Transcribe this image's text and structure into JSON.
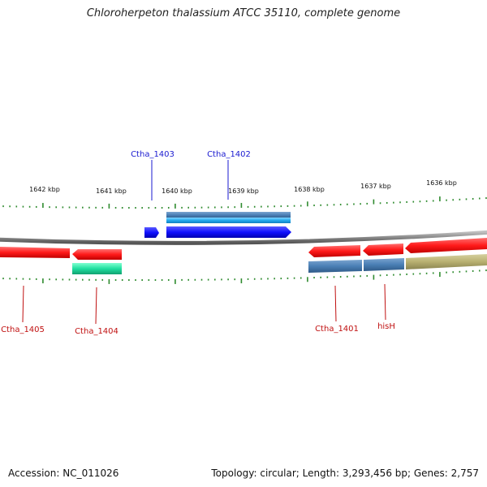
{
  "title": "Chloroherpeton thalassium ATCC 35110, complete genome",
  "footer": {
    "accession": "Accession: NC_011026",
    "summary": "Topology: circular; Length: 3,293,456 bp; Genes: 2,757"
  },
  "ruler": {
    "ticks": [
      "1642 kbp",
      "1641 kbp",
      "1640 kbp",
      "1639 kbp",
      "1638 kbp",
      "1637 kbp",
      "1636 kbp"
    ],
    "tick_color": "#2e8b2e"
  },
  "backbone_color": "#888888",
  "genes": [
    {
      "label": "Ctha_1403",
      "strand": "forward",
      "color": "#1a1aff",
      "label_color": "#1a1ad0"
    },
    {
      "label": "Ctha_1402",
      "strand": "forward",
      "color": "#1a1aff",
      "label_color": "#1a1ad0"
    },
    {
      "label": "Ctha_1405",
      "strand": "reverse",
      "color": "#ff2020",
      "label_color": "#c01010"
    },
    {
      "label": "Ctha_1404",
      "strand": "reverse",
      "color": "#ff2020",
      "label_color": "#c01010"
    },
    {
      "label": "Ctha_1401",
      "strand": "reverse",
      "color": "#ff2020",
      "label_color": "#c01010"
    },
    {
      "label": "hisH",
      "strand": "reverse",
      "color": "#ff2020",
      "label_color": "#c01010"
    }
  ],
  "feature_colors": {
    "cds_forward": "#1a1aff",
    "cds_reverse": "#ff2020",
    "steelblue": "#4a7fb5",
    "light_blue": "#22aaee",
    "teal": "#20e0a0",
    "olive": "#b8b070"
  }
}
